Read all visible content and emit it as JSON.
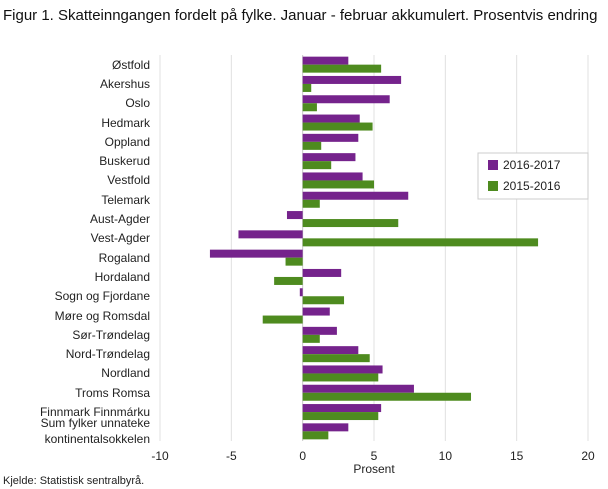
{
  "title": "Figur 1. Skatteinngangen fordelt på fylke. Januar - februar akkumulert. Prosentvis endring",
  "source": "Kjelde: Statistisk sentralbyrå.",
  "chart_data": {
    "type": "bar",
    "orientation": "horizontal",
    "categories": [
      "Østfold",
      "Akershus",
      "Oslo",
      "Hedmark",
      "Oppland",
      "Buskerud",
      "Vestfold",
      "Telemark",
      "Aust-Agder",
      "Vest-Agder",
      "Rogaland",
      "Hordaland",
      "Sogn og Fjordane",
      "Møre og Romsdal",
      "Sør-Trøndelag",
      "Nord-Trøndelag",
      "Nordland",
      "Troms Romsa",
      "Finnmark Finnmárku",
      "Sum fylker unnateke kontinentalsokkelen"
    ],
    "series": [
      {
        "name": "2016-2017",
        "color": "#75238c",
        "values": [
          3.2,
          6.9,
          6.1,
          4.0,
          3.9,
          3.7,
          4.2,
          7.4,
          -1.1,
          -4.5,
          -6.5,
          2.7,
          -0.2,
          1.9,
          2.4,
          3.9,
          5.6,
          7.8,
          5.5,
          3.2
        ]
      },
      {
        "name": "2015-2016",
        "color": "#4e8b1f",
        "values": [
          5.5,
          0.6,
          1.0,
          4.9,
          1.3,
          2.0,
          5.0,
          1.2,
          6.7,
          16.5,
          -1.2,
          -2.0,
          2.9,
          -2.8,
          1.2,
          4.7,
          5.3,
          11.8,
          5.3,
          1.8
        ]
      }
    ],
    "xlabel": "Prosent",
    "xlim": [
      -10,
      20
    ],
    "xticks": [
      -10,
      -5,
      0,
      5,
      10,
      15,
      20
    ],
    "grid": true,
    "legend": "right"
  }
}
